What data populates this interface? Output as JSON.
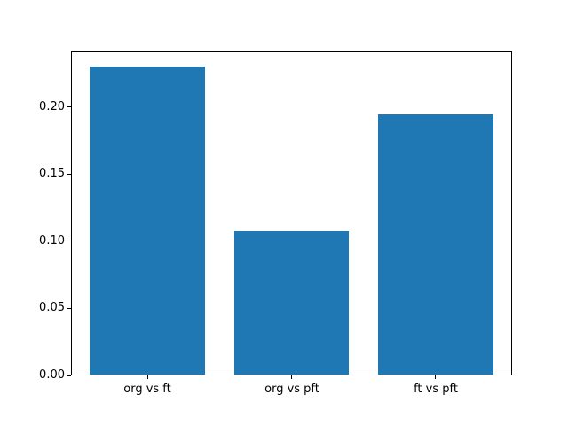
{
  "chart_data": {
    "type": "bar",
    "categories": [
      "org vs ft",
      "org vs pft",
      "ft vs pft"
    ],
    "values": [
      0.231,
      0.108,
      0.195
    ],
    "title": "",
    "xlabel": "",
    "ylabel": "",
    "ylim": [
      0,
      0.2417
    ],
    "xlim": [
      -0.53,
      2.53
    ],
    "bar_width": 0.8,
    "yticks": [
      {
        "value": 0.0,
        "label": "0.00"
      },
      {
        "value": 0.05,
        "label": "0.05"
      },
      {
        "value": 0.1,
        "label": "0.10"
      },
      {
        "value": 0.15,
        "label": "0.15"
      },
      {
        "value": 0.2,
        "label": "0.20"
      }
    ],
    "grid": false,
    "legend": "none",
    "bar_color": "#1f77b4",
    "axis_color": "#000000",
    "text_color": "#000000",
    "background_color": "#ffffff"
  }
}
